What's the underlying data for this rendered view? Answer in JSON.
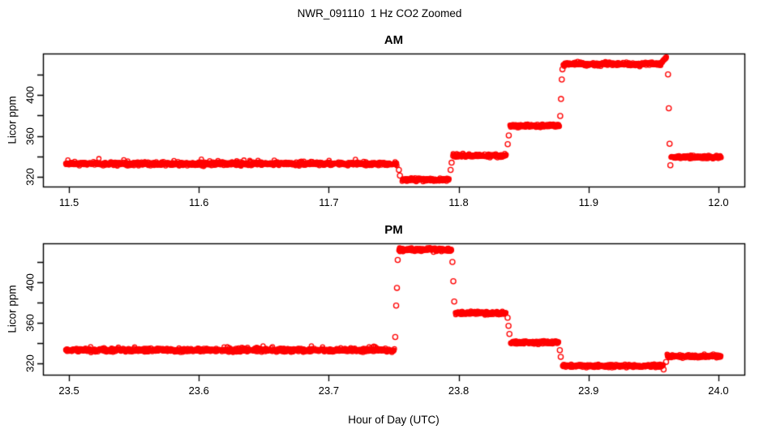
{
  "figure": {
    "title": "NWR_091110  1 Hz CO2 Zoomed",
    "xlabel": "Hour of Day (UTC)",
    "background": "#FFFFFF",
    "axis_color": "#000000",
    "point_color": "#FF0000"
  },
  "chart_data": [
    {
      "type": "scatter",
      "panel": "AM",
      "title": "AM",
      "ylabel": "Licor ppm",
      "marker": "open-circle",
      "color": "#FF0000",
      "sample_rate_hz": 1,
      "xlim": [
        11.48,
        12.02
      ],
      "ylim": [
        310.8,
        440.3
      ],
      "grid": false,
      "legend": "none",
      "xticks": {
        "values": [
          11.5,
          11.6,
          11.7,
          11.8,
          11.9,
          12.0
        ],
        "labels": [
          "11.5",
          "11.6",
          "11.7",
          "11.8",
          "11.9",
          "12.0"
        ]
      },
      "yticks": {
        "values": [
          320,
          340,
          360,
          380,
          400,
          420
        ],
        "labeled_values": [
          320,
          360,
          400
        ],
        "labels": [
          "320",
          "360",
          "400"
        ]
      },
      "segments": [
        {
          "x0": 11.4975,
          "x1": 11.7525,
          "y": 333,
          "noise": 0.9,
          "spikes": true
        },
        {
          "x0": 11.7565,
          "x1": 11.7925,
          "y": 317.5,
          "noise": 0.8,
          "spikes": false
        },
        {
          "x0": 11.7955,
          "x1": 11.8365,
          "y": 341,
          "noise": 0.8,
          "spikes": false
        },
        {
          "x0": 11.8395,
          "x1": 11.8775,
          "y": 370,
          "noise": 0.8,
          "spikes": false
        },
        {
          "x0": 11.8805,
          "x1": 11.9555,
          "y": 430,
          "noise": 0.9,
          "spikes": false
        },
        {
          "x0": 11.9555,
          "x1": 11.96,
          "y": 430,
          "y1": 437,
          "noise": 0.6,
          "spikes": false
        },
        {
          "x0": 11.9635,
          "x1": 12.002,
          "y": 339.5,
          "noise": 0.8,
          "spikes": false
        }
      ],
      "transition_points": [
        {
          "x": 11.754,
          "y": 327
        },
        {
          "x": 11.7548,
          "y": 321.5
        },
        {
          "x": 11.7938,
          "y": 327
        },
        {
          "x": 11.7946,
          "y": 334
        },
        {
          "x": 11.8378,
          "y": 352
        },
        {
          "x": 11.8386,
          "y": 360.5
        },
        {
          "x": 11.8782,
          "y": 379.5
        },
        {
          "x": 11.8788,
          "y": 396
        },
        {
          "x": 11.8794,
          "y": 415
        },
        {
          "x": 11.8799,
          "y": 425
        },
        {
          "x": 11.9612,
          "y": 420
        },
        {
          "x": 11.9618,
          "y": 387
        },
        {
          "x": 11.9624,
          "y": 352.5
        },
        {
          "x": 11.963,
          "y": 331.5
        }
      ]
    },
    {
      "type": "scatter",
      "panel": "PM",
      "title": "PM",
      "ylabel": "Licor ppm",
      "marker": "open-circle",
      "color": "#FF0000",
      "sample_rate_hz": 1,
      "xlim": [
        23.48,
        24.02
      ],
      "ylim": [
        308.8,
        438.4
      ],
      "grid": false,
      "legend": "none",
      "xticks": {
        "values": [
          23.5,
          23.6,
          23.7,
          23.8,
          23.9,
          24.0
        ],
        "labels": [
          "23.5",
          "23.6",
          "23.7",
          "23.8",
          "23.9",
          "24.0"
        ]
      },
      "yticks": {
        "values": [
          320,
          340,
          360,
          380,
          400,
          420
        ],
        "labeled_values": [
          320,
          360,
          400
        ],
        "labels": [
          "320",
          "360",
          "400"
        ]
      },
      "segments": [
        {
          "x0": 23.4975,
          "x1": 23.7505,
          "y": 333,
          "noise": 0.9,
          "spikes": true
        },
        {
          "x0": 23.754,
          "x1": 23.7945,
          "y": 432,
          "noise": 0.9,
          "spikes": false
        },
        {
          "x0": 23.7975,
          "x1": 23.8365,
          "y": 369.5,
          "noise": 0.8,
          "spikes": false
        },
        {
          "x0": 23.84,
          "x1": 23.877,
          "y": 340.5,
          "noise": 0.8,
          "spikes": false
        },
        {
          "x0": 23.88,
          "x1": 23.9575,
          "y": 317.5,
          "noise": 0.8,
          "spikes": false
        },
        {
          "x0": 23.9605,
          "x1": 24.002,
          "y": 327,
          "noise": 0.8,
          "spikes": false
        }
      ],
      "transition_points": [
        {
          "x": 23.7512,
          "y": 346
        },
        {
          "x": 23.7519,
          "y": 377
        },
        {
          "x": 23.7525,
          "y": 394.5
        },
        {
          "x": 23.7531,
          "y": 422
        },
        {
          "x": 23.7952,
          "y": 420
        },
        {
          "x": 23.7959,
          "y": 401
        },
        {
          "x": 23.7966,
          "y": 381
        },
        {
          "x": 23.8377,
          "y": 365
        },
        {
          "x": 23.8384,
          "y": 357
        },
        {
          "x": 23.8391,
          "y": 349
        },
        {
          "x": 23.8779,
          "y": 333
        },
        {
          "x": 23.8786,
          "y": 326.5
        },
        {
          "x": 23.9578,
          "y": 314
        },
        {
          "x": 23.9597,
          "y": 321.5
        }
      ]
    }
  ]
}
